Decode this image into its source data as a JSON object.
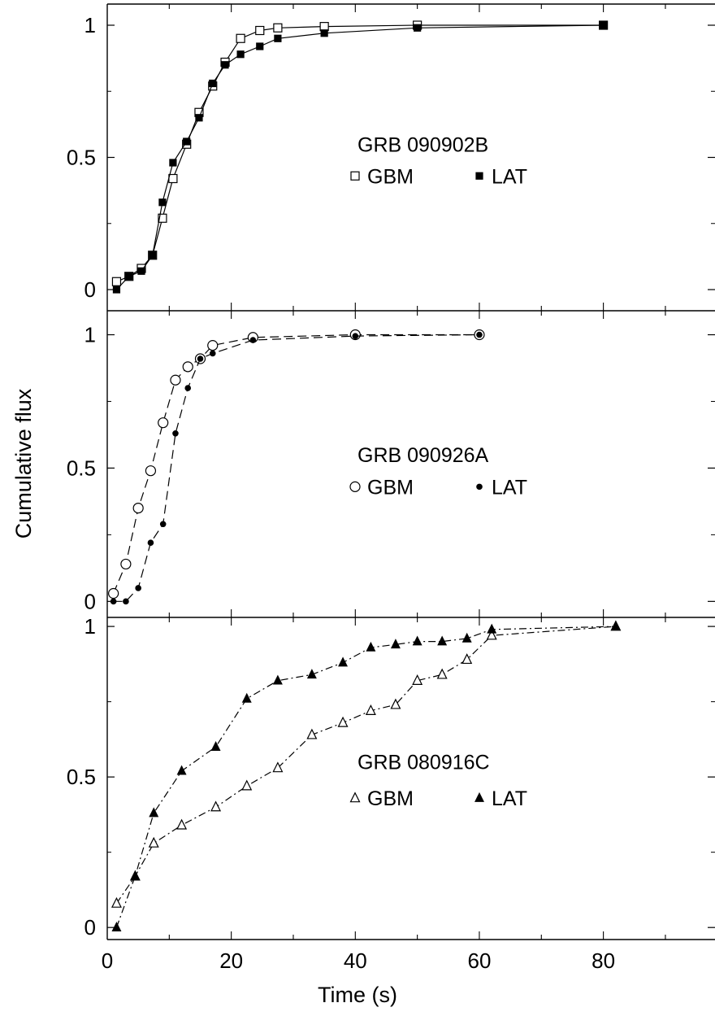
{
  "figure": {
    "xlabel": "Time (s)",
    "ylabel": "Cumulative flux",
    "xlim": [
      0,
      98
    ],
    "x_ticks": [
      "0",
      "20",
      "40",
      "60",
      "80"
    ],
    "x_tick_values": [
      0,
      20,
      40,
      60,
      80
    ]
  },
  "chart_data": [
    {
      "type": "line",
      "title": "GRB 090902B",
      "ylim": [
        -0.08,
        1.08
      ],
      "y_ticks": [
        "0",
        "0.5",
        "1"
      ],
      "y_tick_values": [
        0,
        0.5,
        1
      ],
      "legend_placement": "right-middle",
      "line_style": "solid",
      "series": [
        {
          "name": "GBM",
          "marker": "open-square",
          "x": [
            1.5,
            3.5,
            5.5,
            7.3,
            8.9,
            10.6,
            12.8,
            14.8,
            17,
            19,
            21.5,
            24.6,
            27.5,
            35,
            50,
            80
          ],
          "y": [
            0.03,
            0.05,
            0.08,
            0.13,
            0.27,
            0.42,
            0.55,
            0.67,
            0.77,
            0.86,
            0.95,
            0.98,
            0.99,
            0.995,
            1.0,
            1.0
          ]
        },
        {
          "name": "LAT",
          "marker": "filled-square",
          "x": [
            1.5,
            3.5,
            5.5,
            7.3,
            8.9,
            10.6,
            12.8,
            14.8,
            17,
            19,
            21.5,
            24.6,
            27.5,
            35,
            50,
            80
          ],
          "y": [
            0.0,
            0.05,
            0.07,
            0.13,
            0.33,
            0.48,
            0.56,
            0.65,
            0.78,
            0.85,
            0.89,
            0.92,
            0.95,
            0.97,
            0.99,
            1.0
          ]
        }
      ]
    },
    {
      "type": "line",
      "title": "GRB 090926A",
      "ylim": [
        -0.06,
        1.09
      ],
      "y_ticks": [
        "0",
        "0.5",
        "1"
      ],
      "y_tick_values": [
        0,
        0.5,
        1
      ],
      "legend_placement": "right-middle",
      "line_style": "dashed",
      "series": [
        {
          "name": "GBM",
          "marker": "open-circle",
          "x": [
            1,
            3,
            5,
            7,
            9,
            11,
            13,
            15,
            17,
            23.5,
            40,
            60
          ],
          "y": [
            0.03,
            0.14,
            0.35,
            0.49,
            0.67,
            0.83,
            0.88,
            0.91,
            0.96,
            0.99,
            1.0,
            1.0
          ]
        },
        {
          "name": "LAT",
          "marker": "filled-circle",
          "x": [
            1,
            3,
            5,
            7,
            9,
            11,
            13,
            15,
            17,
            23.5,
            40,
            60
          ],
          "y": [
            0.0,
            0.0,
            0.05,
            0.22,
            0.29,
            0.63,
            0.8,
            0.91,
            0.93,
            0.98,
            0.995,
            1.0
          ]
        }
      ]
    },
    {
      "type": "line",
      "title": "GRB 080916C",
      "ylim": [
        -0.04,
        1.03
      ],
      "y_ticks": [
        "0",
        "0.5",
        "1"
      ],
      "y_tick_values": [
        0,
        0.5,
        1
      ],
      "legend_placement": "right-middle",
      "line_style": "dash-dot",
      "series": [
        {
          "name": "GBM",
          "marker": "open-triangle",
          "x": [
            1.5,
            4.5,
            7.5,
            12,
            17.5,
            22.5,
            27.5,
            33,
            38,
            42.5,
            46.5,
            50,
            54,
            58,
            62,
            82
          ],
          "y": [
            0.08,
            0.17,
            0.28,
            0.34,
            0.4,
            0.47,
            0.53,
            0.64,
            0.68,
            0.72,
            0.74,
            0.82,
            0.84,
            0.89,
            0.97,
            1.0
          ]
        },
        {
          "name": "LAT",
          "marker": "filled-triangle",
          "x": [
            1.5,
            4.5,
            7.5,
            12,
            17.5,
            22.5,
            27.5,
            33,
            38,
            42.5,
            46.5,
            50,
            54,
            58,
            62,
            82
          ],
          "y": [
            0.0,
            0.17,
            0.38,
            0.52,
            0.6,
            0.76,
            0.82,
            0.84,
            0.88,
            0.93,
            0.94,
            0.95,
            0.95,
            0.96,
            0.99,
            1.0
          ]
        }
      ]
    }
  ]
}
